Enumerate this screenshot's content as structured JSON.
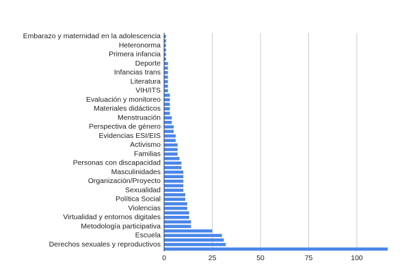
{
  "chart_data": {
    "type": "barh",
    "categories": [
      "Embarazo y maternidad en la adolescencia",
      null,
      "Heteronorma",
      null,
      "Primera infancia",
      null,
      "Deporte",
      null,
      "Infancias trans",
      null,
      "Literatura",
      null,
      "VIH/ITS",
      null,
      "Evaluación y monitoreo",
      null,
      "Materiales didácticos",
      null,
      "Menstruación",
      null,
      "Perspectiva de género",
      null,
      "Evidencias ESI/EIS",
      null,
      "Activismo",
      null,
      "Familias",
      null,
      "Personas con discapacidad",
      null,
      "Masculinidades",
      null,
      "Organización/Proyecto",
      null,
      "Sexualidad",
      null,
      "Política Social",
      null,
      "Violencias",
      null,
      "Virtualidad y entornos digitales",
      null,
      "Metodología participativa",
      null,
      "Escuela",
      null,
      "Derechos sexuales y reproductivos",
      null
    ],
    "values": [
      1,
      1,
      1,
      1,
      1,
      1,
      2,
      2,
      2,
      2,
      2,
      2,
      2,
      3,
      3,
      3,
      3,
      3,
      4,
      4,
      5,
      5,
      6,
      6,
      7,
      7,
      7,
      8,
      9,
      9,
      10,
      10,
      10,
      10,
      10,
      11,
      11,
      12,
      12,
      13,
      13,
      14,
      14,
      25,
      30,
      31,
      32,
      116
    ],
    "color": "#4a86e8",
    "xlim": [
      0,
      116
    ],
    "xticks": [
      0,
      25,
      50,
      75,
      100
    ],
    "grid": true
  }
}
